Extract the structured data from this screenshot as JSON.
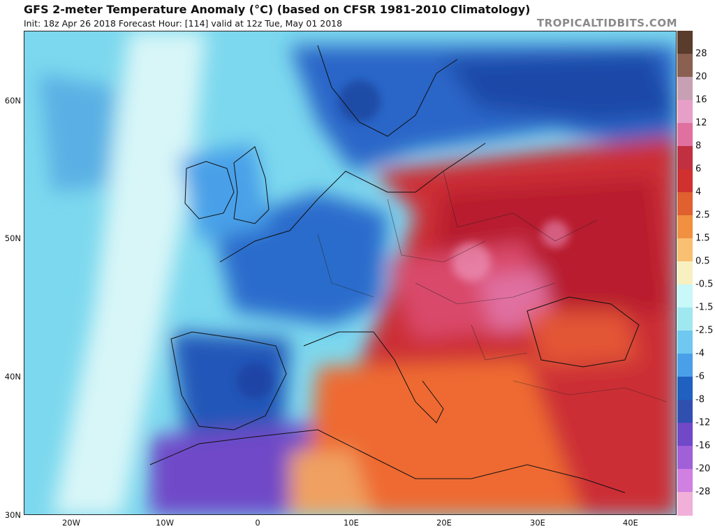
{
  "header": {
    "title": "GFS 2-meter Temperature Anomaly (°C) (based on CFSR 1981-2010 Climatology)",
    "subtitle": "Init: 18z Apr 26 2018   Forecast Hour: [114]   valid at 12z Tue, May 01 2018",
    "brand": "TROPICALTIDBITS.COM"
  },
  "map": {
    "lat_labels": [
      "60N",
      "50N",
      "40N",
      "30N"
    ],
    "lon_labels": [
      "20W",
      "10W",
      "0",
      "10E",
      "20E",
      "30E",
      "40E"
    ]
  },
  "colorbar": {
    "labels": [
      "28",
      "20",
      "16",
      "12",
      "8",
      "6",
      "4",
      "2.5",
      "1.5",
      "0.5",
      "-0.5",
      "-1.5",
      "-2.5",
      "-4",
      "-6",
      "-8",
      "-12",
      "-16",
      "-20",
      "-28"
    ],
    "colors": [
      "#5a3c2c",
      "#8a6050",
      "#c8a0b4",
      "#e6a0c8",
      "#e070a0",
      "#c03040",
      "#d03030",
      "#e06030",
      "#f09040",
      "#f8c070",
      "#f8f0c0",
      "#c8f8f8",
      "#a0e8f0",
      "#70c8f0",
      "#4aa0e8",
      "#2060c0",
      "#3050b0",
      "#7048c8",
      "#a060d8",
      "#d080e0",
      "#f0b0d8"
    ]
  }
}
